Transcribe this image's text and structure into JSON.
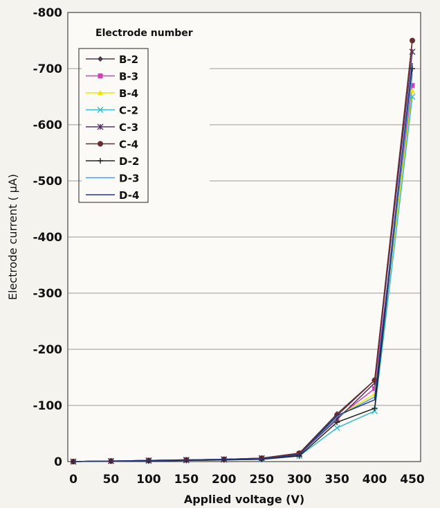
{
  "chart_data": {
    "type": "line",
    "xlabel": "Applied voltage (V)",
    "ylabel": "Electrode current ( μA)",
    "x": [
      0,
      50,
      100,
      150,
      200,
      250,
      300,
      350,
      400,
      450
    ],
    "x_ticks": [
      "0",
      "50",
      "100",
      "150",
      "200",
      "250",
      "300",
      "350",
      "400",
      "450"
    ],
    "xlim": [
      0,
      450
    ],
    "ylim": [
      0,
      -800
    ],
    "y_ticks": [
      0,
      -100,
      -200,
      -300,
      -400,
      -500,
      -600,
      -700,
      -800
    ],
    "y_tick_labels": [
      "0",
      "-100",
      "-200",
      "-300",
      "-400",
      "-500",
      "-600",
      "-700",
      "-800"
    ],
    "grid": "horizontal",
    "legend": {
      "title": "Electrode number",
      "position": "top-left"
    },
    "series": [
      {
        "name": "B-2",
        "color": "#4a3a48",
        "marker": "diamond",
        "values": [
          0,
          -1,
          -2,
          -3,
          -4,
          -6,
          -15,
          -85,
          -145,
          -750
        ]
      },
      {
        "name": "B-3",
        "color": "#cc44bb",
        "marker": "square",
        "values": [
          0,
          -1,
          -2,
          -3,
          -4,
          -5,
          -14,
          -78,
          -130,
          -670
        ]
      },
      {
        "name": "B-4",
        "color": "#e8e800",
        "marker": "triangle",
        "values": [
          0,
          -1,
          -2,
          -2,
          -3,
          -5,
          -12,
          -80,
          -120,
          -660
        ]
      },
      {
        "name": "C-2",
        "color": "#33bbcc",
        "marker": "x",
        "values": [
          0,
          -1,
          -1,
          -2,
          -3,
          -4,
          -10,
          -60,
          -90,
          -650
        ]
      },
      {
        "name": "C-3",
        "color": "#553366",
        "marker": "star",
        "values": [
          0,
          -1,
          -2,
          -3,
          -4,
          -6,
          -13,
          -75,
          -140,
          -730
        ]
      },
      {
        "name": "C-4",
        "color": "#6a2a30",
        "marker": "circle",
        "values": [
          0,
          -1,
          -2,
          -3,
          -4,
          -6,
          -15,
          -82,
          -145,
          -750
        ]
      },
      {
        "name": "D-2",
        "color": "#222222",
        "marker": "plus",
        "values": [
          0,
          -1,
          -1,
          -2,
          -3,
          -4,
          -10,
          -70,
          -95,
          -700
        ]
      },
      {
        "name": "D-3",
        "color": "#5599cc",
        "marker": "none",
        "values": [
          0,
          -1,
          -2,
          -3,
          -4,
          -5,
          -12,
          -80,
          -115,
          -690
        ]
      },
      {
        "name": "D-4",
        "color": "#223388",
        "marker": "none",
        "values": [
          0,
          -1,
          -2,
          -3,
          -4,
          -5,
          -12,
          -82,
          -110,
          -710
        ]
      }
    ]
  }
}
